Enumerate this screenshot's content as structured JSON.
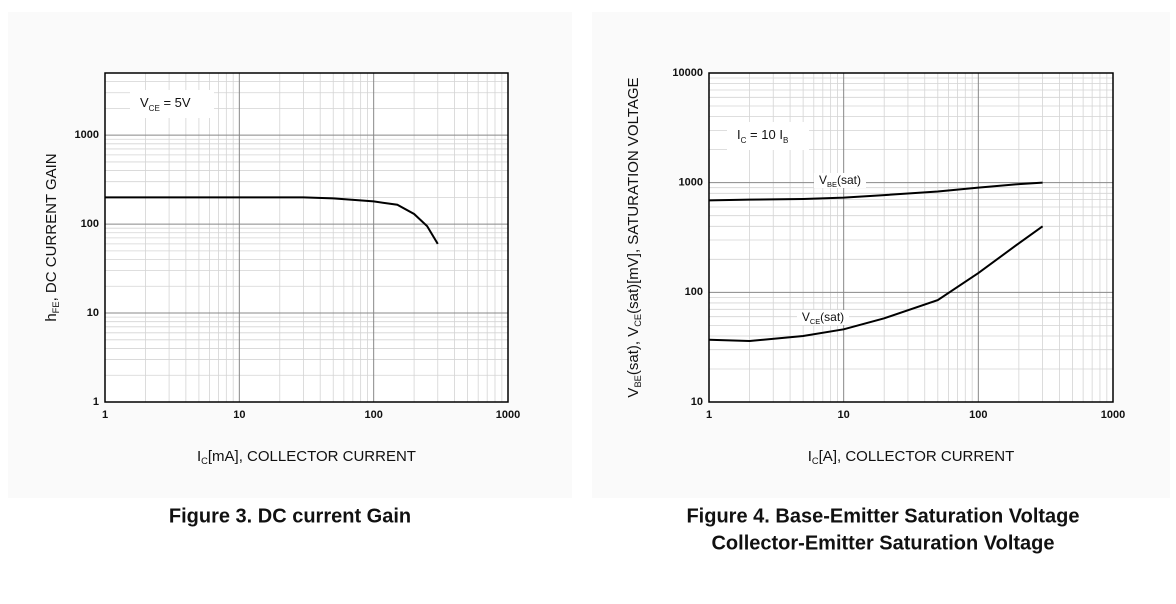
{
  "chart_data": [
    {
      "type": "line",
      "xscale": "log",
      "yscale": "log",
      "grid": true,
      "minor_grid": true,
      "xlabel": [
        {
          "text": "I"
        },
        {
          "text": "C",
          "sub": true
        },
        {
          "text": "[mA], COLLECTOR CURRENT"
        }
      ],
      "ylabel": [
        {
          "text": "h"
        },
        {
          "text": "FE",
          "sub": true
        },
        {
          "text": ", DC CURRENT GAIN"
        }
      ],
      "annotation": [
        {
          "text": "V"
        },
        {
          "text": "CE",
          "sub": true
        },
        {
          "text": " = 5V"
        }
      ],
      "caption": [
        "Figure 3. DC current Gain"
      ],
      "xlim": [
        1,
        1000
      ],
      "xticks": [
        1,
        10,
        100,
        1000
      ],
      "ylim": [
        1,
        5000
      ],
      "yticks": [
        1,
        10,
        100,
        1000
      ],
      "x": [
        1,
        10,
        30,
        50,
        100,
        150,
        200,
        250,
        300
      ],
      "series": [
        {
          "name": [],
          "color": "#000000",
          "values": [
            200,
            200,
            200,
            195,
            180,
            165,
            130,
            95,
            60
          ]
        }
      ]
    },
    {
      "type": "line",
      "xscale": "log",
      "yscale": "log",
      "grid": true,
      "minor_grid": true,
      "xlabel": [
        {
          "text": "I"
        },
        {
          "text": "C",
          "sub": true
        },
        {
          "text": "[A], COLLECTOR CURRENT"
        }
      ],
      "ylabel": [
        {
          "text": "V"
        },
        {
          "text": "BE",
          "sub": true
        },
        {
          "text": "(sat), V"
        },
        {
          "text": "CE",
          "sub": true
        },
        {
          "text": "(sat)[mV], SATURATION VOLTAGE"
        }
      ],
      "annotation": [
        {
          "text": "I"
        },
        {
          "text": "C",
          "sub": true
        },
        {
          "text": " = 10 I"
        },
        {
          "text": "B",
          "sub": true
        }
      ],
      "caption": [
        "Figure 4. Base-Emitter Saturation Voltage",
        "Collector-Emitter Saturation Voltage"
      ],
      "xlim": [
        1,
        1000
      ],
      "xticks": [
        1,
        10,
        100,
        1000
      ],
      "ylim": [
        10,
        10000
      ],
      "yticks": [
        10,
        100,
        1000,
        10000
      ],
      "x": [
        1,
        2,
        5,
        10,
        20,
        50,
        100,
        200,
        300
      ],
      "series": [
        {
          "name": [
            {
              "text": "V"
            },
            {
              "text": "BE",
              "sub": true
            },
            {
              "text": "(sat)"
            }
          ],
          "color": "#000000",
          "values": [
            690,
            700,
            710,
            730,
            770,
            830,
            900,
            970,
            1000
          ]
        },
        {
          "name": [
            {
              "text": "V"
            },
            {
              "text": "CE",
              "sub": true
            },
            {
              "text": "(sat)"
            }
          ],
          "color": "#000000",
          "values": [
            37,
            36,
            40,
            46,
            58,
            85,
            150,
            280,
            400
          ]
        }
      ]
    }
  ]
}
